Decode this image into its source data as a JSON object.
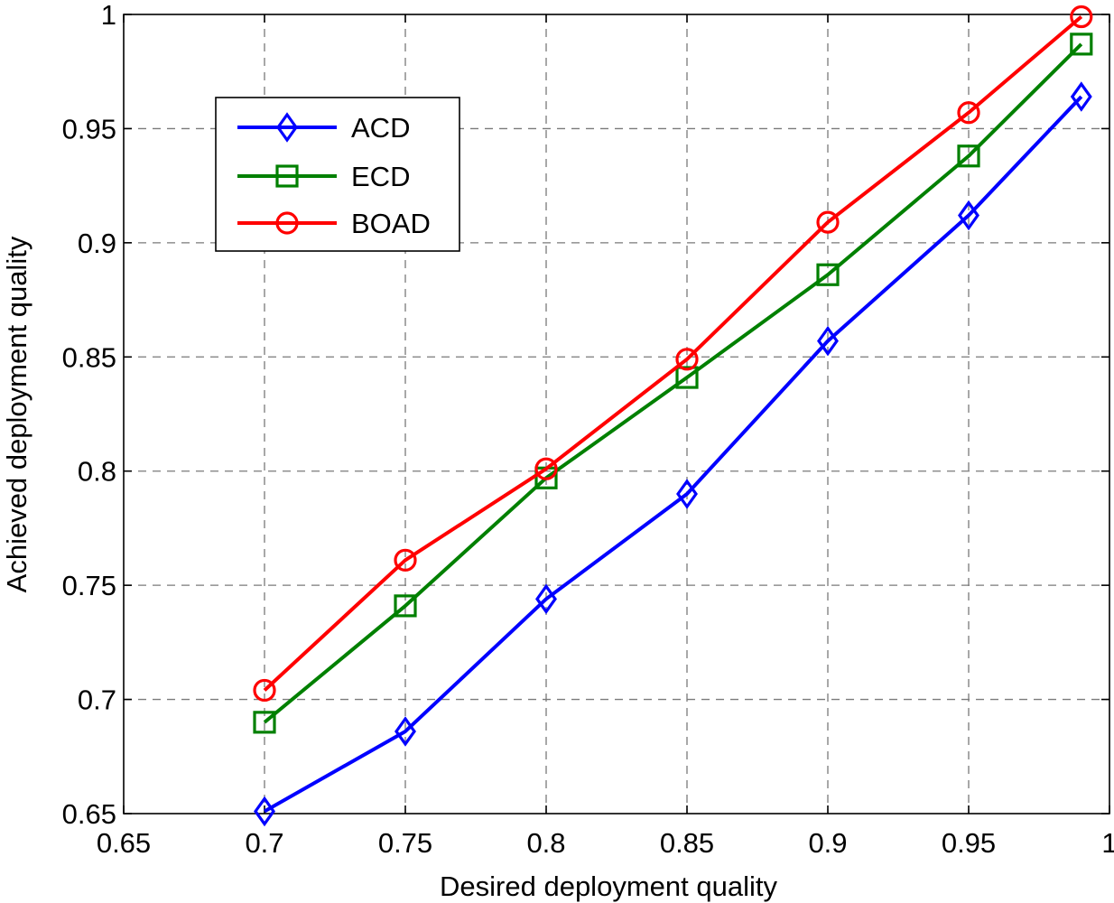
{
  "chart_data": {
    "type": "line",
    "title": "",
    "xlabel": "Desired deployment quality",
    "ylabel": "Achieved deployment quality",
    "xlim": [
      0.65,
      1.0
    ],
    "ylim": [
      0.65,
      1.0
    ],
    "xticks": [
      "0.65",
      "0.7",
      "0.75",
      "0.8",
      "0.85",
      "0.9",
      "0.95",
      "1"
    ],
    "yticks": [
      "0.65",
      "0.7",
      "0.75",
      "0.8",
      "0.85",
      "0.9",
      "0.95",
      "1"
    ],
    "grid": true,
    "legend_position": "upper-left",
    "x": [
      0.7,
      0.75,
      0.8,
      0.85,
      0.9,
      0.95,
      0.99
    ],
    "series": [
      {
        "name": "ACD",
        "color": "#0000ff",
        "marker": "diamond",
        "values": [
          0.651,
          0.686,
          0.744,
          0.79,
          0.857,
          0.912,
          0.964
        ]
      },
      {
        "name": "ECD",
        "color": "#008000",
        "marker": "square",
        "values": [
          0.69,
          0.741,
          0.797,
          0.841,
          0.886,
          0.938,
          0.987
        ]
      },
      {
        "name": "BOAD",
        "color": "#ff0000",
        "marker": "circle",
        "values": [
          0.704,
          0.761,
          0.801,
          0.849,
          0.909,
          0.957,
          0.999
        ]
      }
    ]
  }
}
